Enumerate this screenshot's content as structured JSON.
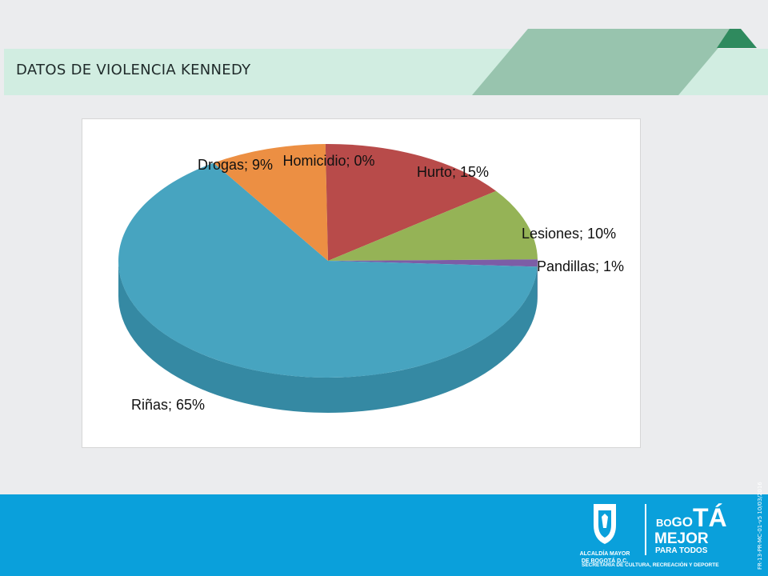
{
  "slide": {
    "title": "DATOS DE VIOLENCIA KENNEDY",
    "colors": {
      "background": "#ebecee",
      "title_band": "#d1ede1",
      "accent_shape": "#98c4ae",
      "accent_dark": "#2f8a5e",
      "footer": "#0aa0db"
    }
  },
  "chart_data": {
    "type": "pie",
    "style": "3d",
    "title": "",
    "data_labels": "category; percent",
    "categories": [
      "Homicidio",
      "Hurto",
      "Lesiones",
      "Pandillas",
      "Riñas",
      "Drogas"
    ],
    "values": [
      0,
      15,
      10,
      1,
      65,
      9
    ],
    "labels": [
      "Homicidio; 0%",
      "Hurto; 15%",
      "Lesiones; 10%",
      "Pandillas; 1%",
      "Riñas; 65%",
      "Drogas; 9%"
    ],
    "colors": [
      "#4f81bd",
      "#b84b4a",
      "#95b356",
      "#7c5da6",
      "#47a4c0",
      "#ec8f43"
    ],
    "side_colors": [
      "#3b628f",
      "#8c3837",
      "#6f8841",
      "#5c457d",
      "#3589a3",
      "#b86c30"
    ],
    "legend": "none"
  },
  "footer": {
    "logo_line1": "ALCALDÍA MAYOR",
    "logo_line2": "DE BOGOTÁ D.C.",
    "brand_bo": "BO",
    "brand_go": "GO",
    "brand_ta": "TÁ",
    "brand_mejor": "MEJOR",
    "brand_para": "PARA TODOS",
    "secretaria": "SECRETARÍA DE CULTURA, RECREACIÓN Y DEPORTE",
    "doc_code": "FR-13-PR-MC-01-v5 10/03/2016"
  }
}
